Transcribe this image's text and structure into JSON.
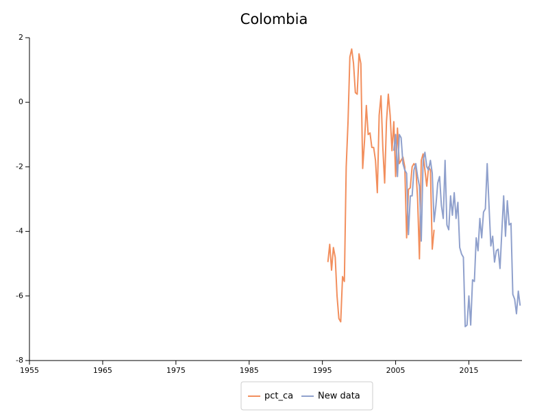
{
  "chart_data": {
    "type": "line",
    "title": "Colombia",
    "xlim": [
      1955,
      2022.25
    ],
    "xticks": [
      1955,
      1965,
      1975,
      1985,
      1995,
      2005,
      2015
    ],
    "ylim": [
      -8,
      2
    ],
    "yticks": [
      -8,
      -6,
      -4,
      -2,
      0,
      2
    ],
    "series": [
      {
        "name": "pct_ca",
        "color": "#f28e5c",
        "x": [
          1995.75,
          1996,
          1996.25,
          1996.5,
          1996.75,
          1997,
          1997.25,
          1997.5,
          1997.75,
          1998,
          1998.25,
          1998.5,
          1998.75,
          1999,
          1999.25,
          1999.5,
          1999.75,
          2000,
          2000.25,
          2000.5,
          2000.75,
          2001,
          2001.25,
          2001.5,
          2001.75,
          2002,
          2002.25,
          2002.5,
          2002.75,
          2003,
          2003.25,
          2003.5,
          2003.75,
          2004,
          2004.25,
          2004.5,
          2004.75,
          2005,
          2005.25,
          2005.5,
          2005.75,
          2006,
          2006.25,
          2006.5,
          2006.75,
          2007,
          2007.25,
          2007.5,
          2007.75,
          2008,
          2008.25,
          2008.5,
          2008.75,
          2009,
          2009.25,
          2009.5,
          2009.75,
          2010,
          2010.25
        ],
        "values": [
          -4.95,
          -4.4,
          -5.2,
          -4.5,
          -4.8,
          -6.0,
          -6.7,
          -6.8,
          -5.4,
          -5.55,
          -2.0,
          -0.6,
          1.4,
          1.65,
          1.2,
          0.3,
          0.25,
          1.5,
          1.2,
          -2.05,
          -1.2,
          -0.1,
          -1.0,
          -0.95,
          -1.4,
          -1.4,
          -1.8,
          -2.8,
          -0.4,
          0.2,
          -1.4,
          -2.5,
          -0.6,
          0.25,
          -0.4,
          -1.5,
          -0.6,
          -2.3,
          -0.8,
          -1.9,
          -1.8,
          -1.7,
          -2.0,
          -4.2,
          -2.7,
          -2.65,
          -2.0,
          -1.9,
          -2.0,
          -3.0,
          -4.85,
          -1.8,
          -1.6,
          -2.1,
          -2.6,
          -2.0,
          -2.1,
          -4.55,
          -3.95
        ]
      },
      {
        "name": "New data",
        "color": "#8fa0cc",
        "x": [
          2004.75,
          2005,
          2005.25,
          2005.5,
          2005.75,
          2006,
          2006.25,
          2006.5,
          2006.75,
          2007,
          2007.25,
          2007.5,
          2007.75,
          2008,
          2008.25,
          2008.5,
          2008.75,
          2009,
          2009.25,
          2009.5,
          2009.75,
          2010,
          2010.25,
          2010.5,
          2010.75,
          2011,
          2011.25,
          2011.5,
          2011.75,
          2012,
          2012.25,
          2012.5,
          2012.75,
          2013,
          2013.25,
          2013.5,
          2013.75,
          2014,
          2014.25,
          2014.5,
          2014.75,
          2015,
          2015.25,
          2015.5,
          2015.75,
          2016,
          2016.25,
          2016.5,
          2016.75,
          2017,
          2017.25,
          2017.5,
          2017.75,
          2018,
          2018.25,
          2018.5,
          2018.75,
          2019,
          2019.25,
          2019.5,
          2019.75,
          2020,
          2020.25,
          2020.5,
          2020.75,
          2021,
          2021.25,
          2021.5,
          2021.75,
          2022
        ],
        "values": [
          -1.5,
          -1.0,
          -2.3,
          -1.0,
          -1.1,
          -1.9,
          -2.1,
          -2.2,
          -4.1,
          -2.9,
          -2.9,
          -2.1,
          -1.9,
          -2.3,
          -2.6,
          -4.3,
          -1.8,
          -1.55,
          -2.0,
          -2.1,
          -1.8,
          -2.2,
          -3.7,
          -3.2,
          -2.5,
          -2.3,
          -3.2,
          -3.6,
          -1.8,
          -3.8,
          -3.95,
          -2.9,
          -3.5,
          -2.8,
          -3.6,
          -3.1,
          -4.5,
          -4.7,
          -4.8,
          -6.95,
          -6.9,
          -6.0,
          -6.9,
          -5.5,
          -5.55,
          -4.2,
          -4.6,
          -3.6,
          -4.2,
          -3.4,
          -3.3,
          -1.9,
          -3.2,
          -4.45,
          -4.15,
          -4.95,
          -4.6,
          -4.55,
          -5.15,
          -4.0,
          -2.9,
          -4.15,
          -3.05,
          -3.8,
          -3.75,
          -5.95,
          -6.1,
          -6.55,
          -5.85,
          -6.3
        ]
      }
    ]
  }
}
